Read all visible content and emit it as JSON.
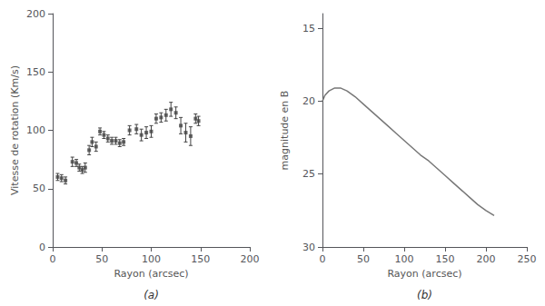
{
  "chart_data": [
    {
      "type": "scatter",
      "annotation": "(a)",
      "xlabel": "Rayon (arcsec)",
      "ylabel": "Vitesse de rotation (Km/s)",
      "x": [
        5,
        9,
        13,
        20,
        24,
        27,
        30,
        33,
        37,
        40,
        44,
        48,
        52,
        56,
        60,
        64,
        68,
        72,
        78,
        85,
        90,
        95,
        100,
        105,
        110,
        115,
        120,
        125,
        130,
        135,
        140,
        145,
        148
      ],
      "values": [
        60,
        59,
        57,
        73,
        72,
        68,
        66,
        68,
        83,
        90,
        86,
        99,
        96,
        93,
        91,
        91,
        89,
        90,
        100,
        101,
        96,
        98,
        99,
        110,
        111,
        113,
        118,
        115,
        104,
        98,
        95,
        110,
        108
      ],
      "yerr": [
        3,
        3,
        3,
        4,
        3,
        3,
        3,
        4,
        4,
        4,
        4,
        3,
        3,
        3,
        3,
        3,
        3,
        3,
        4,
        4,
        5,
        5,
        5,
        4,
        4,
        5,
        6,
        5,
        7,
        8,
        8,
        4,
        4
      ],
      "color": "#444444",
      "marker": "square",
      "xlim": [
        0,
        200
      ],
      "ylim": [
        0,
        200
      ],
      "xticks": [
        0,
        50,
        100,
        150,
        200
      ],
      "yticks": [
        0,
        50,
        100,
        150,
        200
      ],
      "grid": false
    },
    {
      "type": "line",
      "annotation": "(b)",
      "xlabel": "Rayon (arcsec)",
      "ylabel": "magnitude en B",
      "x": [
        0,
        3,
        8,
        15,
        22,
        30,
        40,
        50,
        60,
        70,
        80,
        90,
        100,
        110,
        120,
        130,
        140,
        150,
        160,
        170,
        180,
        190,
        200,
        210
      ],
      "values": [
        20.0,
        19.6,
        19.3,
        19.1,
        19.1,
        19.3,
        19.7,
        20.2,
        20.7,
        21.2,
        21.7,
        22.2,
        22.7,
        23.2,
        23.7,
        24.1,
        24.6,
        25.1,
        25.6,
        26.1,
        26.6,
        27.1,
        27.5,
        27.85
      ],
      "color": "#777777",
      "xlim": [
        0,
        250
      ],
      "ylim": [
        30,
        14
      ],
      "xticks": [
        0,
        50,
        100,
        150,
        200,
        250
      ],
      "yticks": [
        15,
        20,
        25,
        30
      ],
      "grid": false
    }
  ]
}
